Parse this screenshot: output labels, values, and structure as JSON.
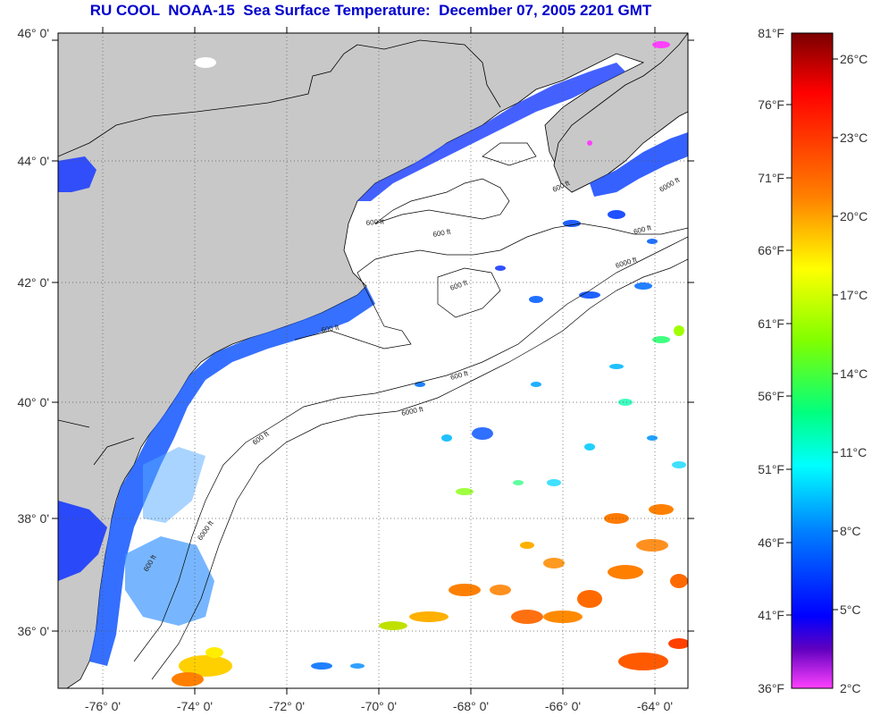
{
  "title": "RU COOL  NOAA-15  Sea Surface Temperature:  December 07, 2005 2201 GMT",
  "map": {
    "lat_labels": [
      "46° 0'",
      "44° 0'",
      "42° 0'",
      "40° 0'",
      "38° 0'",
      "36° 0'"
    ],
    "lon_labels": [
      "-76° 0'",
      "-74° 0'",
      "-72° 0'",
      "-70° 0'",
      "-68° 0'",
      "-66° 0'",
      "-64° 0'"
    ],
    "contour_labels": [
      "600 ft",
      "600 ft",
      "600 ft",
      "6000 ft",
      "600 ft",
      "6000 ft",
      "600 ft",
      "6000 ft",
      "600 ft",
      "600 ft",
      "600 ft",
      "600 ft",
      "6000 ft"
    ],
    "colors": {
      "land": "#c8c8c8",
      "ocean_masked": "#ffffff",
      "coastline": "#000000",
      "grid": "#555555"
    }
  },
  "colorbar": {
    "fahrenheit": [
      "81°F",
      "76°F",
      "71°F",
      "66°F",
      "61°F",
      "56°F",
      "51°F",
      "46°F",
      "41°F",
      "36°F"
    ],
    "celsius": [
      "26°C",
      "23°C",
      "20°C",
      "17°C",
      "14°C",
      "11°C",
      "8°C",
      "5°C",
      "2°C"
    ],
    "gradient_stops": [
      "#8b0000",
      "#ff0000",
      "#ff8000",
      "#ffff00",
      "#80ff00",
      "#00ff80",
      "#00ffff",
      "#0080ff",
      "#0000ff",
      "#6000c0",
      "#ff40ff"
    ]
  }
}
